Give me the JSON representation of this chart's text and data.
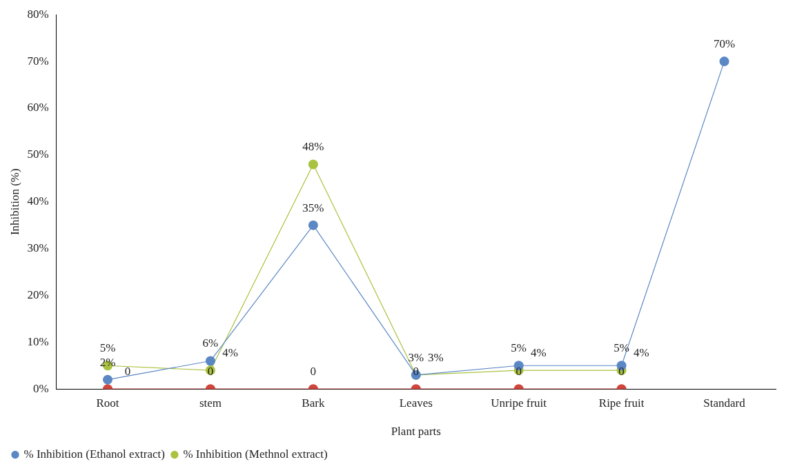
{
  "chart_data": {
    "type": "line",
    "xlabel": "Plant parts",
    "ylabel": "Inhibition (%)",
    "categories": [
      "Root",
      "stem",
      "Bark",
      "Leaves",
      "Unripe fruit",
      "Ripe fruit",
      "Standard"
    ],
    "series": [
      {
        "name": "% Inhibition (Ethanol extract)",
        "color": "#5b87c5",
        "values": [
          2,
          6,
          35,
          3,
          5,
          5,
          70
        ],
        "value_labels": [
          "2%",
          "6%",
          "35%",
          "3%",
          "5%",
          "5%",
          "70%"
        ]
      },
      {
        "name": "% Inhibition (Methnol extract)",
        "color": "#a9c23f",
        "values": [
          5,
          4,
          48,
          3,
          4,
          4,
          null
        ],
        "value_labels": [
          "5%",
          "4%",
          "48%",
          "3%",
          "4%",
          "4%",
          null
        ]
      },
      {
        "color": "#d0463c",
        "values": [
          0,
          0,
          0,
          0,
          0,
          0,
          null
        ],
        "value_labels": [
          "0",
          "0",
          "0",
          "0",
          "0",
          "0",
          null
        ]
      }
    ],
    "ylim": [
      0,
      80
    ],
    "yticks": [
      {
        "value": 0,
        "label": "0%"
      },
      {
        "value": 10,
        "label": "10%"
      },
      {
        "value": 20,
        "label": "20%"
      },
      {
        "value": 30,
        "label": "30%"
      },
      {
        "value": 40,
        "label": "40%"
      },
      {
        "value": 50,
        "label": "50%"
      },
      {
        "value": 60,
        "label": "60%"
      },
      {
        "value": 70,
        "label": "70%"
      },
      {
        "value": 80,
        "label": "80%"
      }
    ],
    "grid": false,
    "legend": "bottom left",
    "marker": "circle",
    "line_style": "solid"
  }
}
